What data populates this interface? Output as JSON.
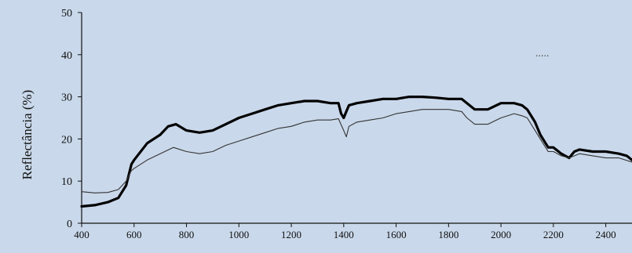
{
  "chart_data": {
    "type": "line",
    "title": "",
    "xlabel": "",
    "ylabel": "Reflectância (%)",
    "xlim": [
      400,
      2500
    ],
    "ylim": [
      0,
      50
    ],
    "x_ticks": [
      400,
      600,
      800,
      1000,
      1200,
      1400,
      1600,
      1800,
      2000,
      2200,
      2400
    ],
    "y_ticks": [
      0,
      10,
      20,
      30,
      40,
      50
    ],
    "grid": false,
    "legend_marker_text": ".....",
    "series": [
      {
        "style": "thick",
        "color": "#000000",
        "x": [
          400,
          450,
          500,
          540,
          570,
          590,
          600,
          650,
          700,
          730,
          760,
          800,
          850,
          900,
          950,
          1000,
          1050,
          1100,
          1150,
          1200,
          1250,
          1300,
          1350,
          1380,
          1390,
          1400,
          1410,
          1420,
          1450,
          1500,
          1550,
          1600,
          1650,
          1700,
          1750,
          1800,
          1850,
          1880,
          1900,
          1950,
          2000,
          2050,
          2080,
          2100,
          2130,
          2150,
          2180,
          2200,
          2230,
          2260,
          2280,
          2300,
          2350,
          2400,
          2450,
          2480,
          2500
        ],
        "y": [
          4,
          4.3,
          5,
          6,
          9,
          14,
          15,
          19,
          21,
          23,
          23.5,
          22,
          21.5,
          22,
          23.5,
          25,
          26,
          27,
          28,
          28.5,
          29,
          29,
          28.5,
          28.5,
          26,
          25,
          26.5,
          28,
          28.5,
          29,
          29.5,
          29.5,
          30,
          30,
          29.8,
          29.5,
          29.5,
          28,
          27,
          27,
          28.5,
          28.5,
          28,
          27,
          24,
          21,
          18,
          18,
          16.5,
          15.5,
          17,
          17.5,
          17,
          17,
          16.5,
          16,
          15
        ]
      },
      {
        "style": "thin",
        "color": "#333333",
        "x": [
          400,
          450,
          500,
          540,
          570,
          590,
          600,
          650,
          700,
          750,
          800,
          850,
          900,
          950,
          1000,
          1050,
          1100,
          1150,
          1200,
          1250,
          1300,
          1350,
          1380,
          1400,
          1410,
          1420,
          1450,
          1500,
          1550,
          1600,
          1650,
          1700,
          1750,
          1800,
          1850,
          1870,
          1900,
          1950,
          2000,
          2050,
          2080,
          2100,
          2130,
          2150,
          2180,
          2200,
          2230,
          2260,
          2280,
          2300,
          2350,
          2400,
          2450,
          2500
        ],
        "y": [
          7.5,
          7.2,
          7.3,
          8,
          10,
          12.5,
          13,
          15,
          16.5,
          18,
          17,
          16.5,
          17,
          18.5,
          19.5,
          20.5,
          21.5,
          22.5,
          23,
          24,
          24.5,
          24.5,
          24.8,
          22,
          20.5,
          23,
          24,
          24.5,
          25,
          26,
          26.5,
          27,
          27,
          27,
          26.5,
          25,
          23.5,
          23.5,
          25,
          26,
          25.5,
          25,
          22,
          20,
          17,
          17,
          16,
          15.5,
          16,
          16.5,
          16,
          15.5,
          15.5,
          14.5
        ]
      }
    ]
  }
}
